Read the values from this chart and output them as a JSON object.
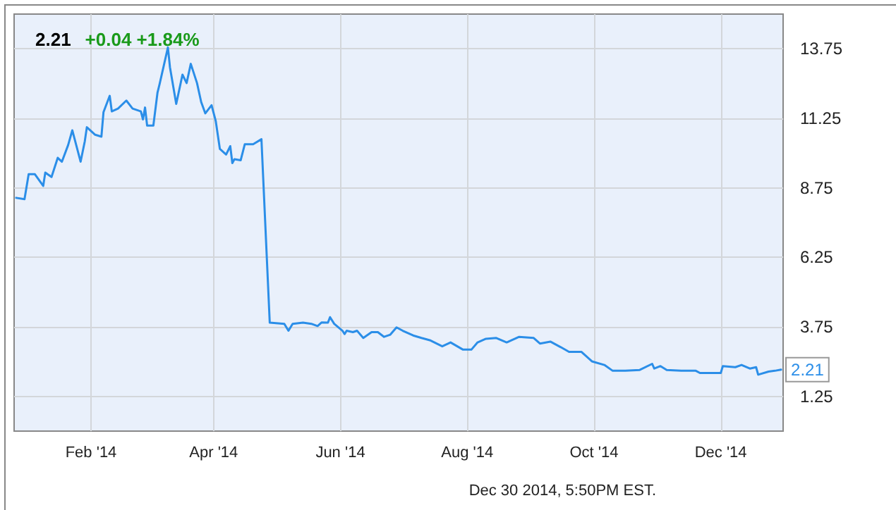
{
  "chart_data": {
    "type": "line",
    "title": "2.21",
    "subtitle": "+0.04 +1.84%",
    "annotations": [
      {
        "text": "2.21",
        "x": "2014-12-30",
        "y": 2.21
      },
      "Dec 30 2014, 5:50PM EST."
    ],
    "x": [
      "2013-12-27",
      "2013-12-31",
      "2014-01-02",
      "2014-01-05",
      "2014-01-09",
      "2014-01-10",
      "2014-01-13",
      "2014-01-16",
      "2014-01-18",
      "2014-01-21",
      "2014-01-23",
      "2014-01-27",
      "2014-01-29",
      "2014-01-30",
      "2014-02-03",
      "2014-02-06",
      "2014-02-07",
      "2014-02-10",
      "2014-02-11",
      "2014-02-14",
      "2014-02-18",
      "2014-02-21",
      "2014-02-25",
      "2014-02-26",
      "2014-02-27",
      "2014-02-28",
      "2014-03-03",
      "2014-03-05",
      "2014-03-06",
      "2014-03-10",
      "2014-03-11",
      "2014-03-14",
      "2014-03-17",
      "2014-03-19",
      "2014-03-21",
      "2014-03-24",
      "2014-03-26",
      "2014-03-28",
      "2014-03-31",
      "2014-04-02",
      "2014-04-04",
      "2014-04-07",
      "2014-04-09",
      "2014-04-10",
      "2014-04-11",
      "2014-04-14",
      "2014-04-16",
      "2014-04-20",
      "2014-04-24",
      "2014-04-28",
      "2014-05-05",
      "2014-05-07",
      "2014-05-09",
      "2014-05-14",
      "2014-05-18",
      "2014-05-21",
      "2014-05-23",
      "2014-05-26",
      "2014-05-27",
      "2014-05-29",
      "2014-06-02",
      "2014-06-03",
      "2014-06-04",
      "2014-06-07",
      "2014-06-09",
      "2014-06-12",
      "2014-06-16",
      "2014-06-19",
      "2014-06-22",
      "2014-06-25",
      "2014-06-28",
      "2014-07-01",
      "2014-07-06",
      "2014-07-10",
      "2014-07-14",
      "2014-07-20",
      "2014-07-24",
      "2014-07-30",
      "2014-08-03",
      "2014-08-06",
      "2014-08-10",
      "2014-08-15",
      "2014-08-20",
      "2014-08-26",
      "2014-09-02",
      "2014-09-05",
      "2014-09-10",
      "2014-09-15",
      "2014-09-19",
      "2014-09-25",
      "2014-09-30",
      "2014-10-06",
      "2014-10-10",
      "2014-10-16",
      "2014-10-23",
      "2014-10-29",
      "2014-10-30",
      "2014-11-02",
      "2014-11-05",
      "2014-11-12",
      "2014-11-19",
      "2014-11-21",
      "2014-12-01",
      "2014-12-02",
      "2014-12-08",
      "2014-12-11",
      "2014-12-15",
      "2014-12-18",
      "2014-12-19",
      "2014-12-24",
      "2014-12-27",
      "2014-12-30"
    ],
    "series": [
      {
        "color": "#2b8ee8",
        "values": [
          8.39,
          8.34,
          9.24,
          9.24,
          8.82,
          9.3,
          9.14,
          9.83,
          9.69,
          10.29,
          10.82,
          9.69,
          10.42,
          10.93,
          10.66,
          10.59,
          11.47,
          12.06,
          11.5,
          11.6,
          11.89,
          11.6,
          11.5,
          11.21,
          11.64,
          10.99,
          10.99,
          12.18,
          12.48,
          13.8,
          13.08,
          11.77,
          12.82,
          12.52,
          13.21,
          12.52,
          11.84,
          11.43,
          11.72,
          11.16,
          10.15,
          9.95,
          10.25,
          9.64,
          9.78,
          9.74,
          10.32,
          10.32,
          10.5,
          3.9,
          3.86,
          3.61,
          3.86,
          3.9,
          3.86,
          3.78,
          3.91,
          3.9,
          4.1,
          3.86,
          3.61,
          3.49,
          3.61,
          3.56,
          3.61,
          3.35,
          3.56,
          3.56,
          3.39,
          3.47,
          3.73,
          3.61,
          3.44,
          3.35,
          3.27,
          3.05,
          3.19,
          2.93,
          2.93,
          3.19,
          3.32,
          3.35,
          3.19,
          3.39,
          3.35,
          3.15,
          3.22,
          3.02,
          2.85,
          2.85,
          2.51,
          2.38,
          2.17,
          2.17,
          2.2,
          2.42,
          2.25,
          2.34,
          2.2,
          2.17,
          2.17,
          2.09,
          2.09,
          2.34,
          2.3,
          2.38,
          2.25,
          2.3,
          2.03,
          2.14,
          2.17,
          2.21
        ]
      }
    ],
    "xlim": [
      "2013-12-26",
      "2014-12-31"
    ],
    "xticks": [
      {
        "value": "2014-02-01",
        "label": "Feb '14"
      },
      {
        "value": "2014-04-01",
        "label": "Apr '14"
      },
      {
        "value": "2014-06-01",
        "label": "Jun '14"
      },
      {
        "value": "2014-08-01",
        "label": "Aug '14"
      },
      {
        "value": "2014-10-01",
        "label": "Oct '14"
      },
      {
        "value": "2014-12-01",
        "label": "Dec '14"
      }
    ],
    "ylim": [
      0,
      15
    ],
    "yticks": [
      1.25,
      3.75,
      6.25,
      8.75,
      11.25,
      13.75
    ],
    "grid": true,
    "marker": "none",
    "line_style": "solid"
  }
}
